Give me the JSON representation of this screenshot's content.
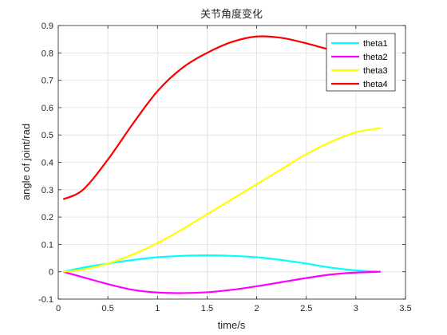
{
  "chart_data": {
    "type": "line",
    "title": "关节角度变化",
    "xlabel": "time/s",
    "ylabel": "angle of joint/rad",
    "xlim": [
      0,
      3.5
    ],
    "ylim": [
      -0.1,
      0.9
    ],
    "xticks": [
      0,
      0.5,
      1,
      1.5,
      2,
      2.5,
      3,
      3.5
    ],
    "xtick_labels": [
      "0",
      "0.5",
      "1",
      "1.5",
      "2",
      "2.5",
      "3",
      "3.5"
    ],
    "yticks": [
      -0.1,
      0,
      0.1,
      0.2,
      0.3,
      0.4,
      0.5,
      0.6,
      0.7,
      0.8,
      0.9
    ],
    "ytick_labels": [
      "-0.1",
      "0",
      "0.1",
      "0.2",
      "0.3",
      "0.4",
      "0.5",
      "0.6",
      "0.7",
      "0.8",
      "0.9"
    ],
    "grid": true,
    "legend_position": "top-right",
    "x": [
      0.05,
      0.25,
      0.5,
      0.75,
      1.0,
      1.25,
      1.5,
      1.75,
      2.0,
      2.25,
      2.5,
      2.75,
      3.0,
      3.25
    ],
    "series": [
      {
        "name": "theta1",
        "color": "#00FFFF",
        "values": [
          0.0,
          0.015,
          0.03,
          0.043,
          0.053,
          0.058,
          0.06,
          0.058,
          0.053,
          0.043,
          0.03,
          0.015,
          0.005,
          0.0
        ]
      },
      {
        "name": "theta2",
        "color": "#FF00FF",
        "values": [
          0.0,
          -0.02,
          -0.045,
          -0.066,
          -0.076,
          -0.078,
          -0.075,
          -0.066,
          -0.053,
          -0.038,
          -0.023,
          -0.01,
          -0.003,
          0.0
        ]
      },
      {
        "name": "theta3",
        "color": "#FFFF00",
        "values": [
          0.0,
          0.008,
          0.03,
          0.063,
          0.105,
          0.155,
          0.21,
          0.265,
          0.32,
          0.375,
          0.43,
          0.475,
          0.51,
          0.525
        ]
      },
      {
        "name": "theta4",
        "color": "#FF0000",
        "values": [
          0.265,
          0.3,
          0.41,
          0.54,
          0.66,
          0.745,
          0.8,
          0.84,
          0.86,
          0.855,
          0.835,
          0.81,
          0.785,
          0.775
        ]
      }
    ]
  }
}
